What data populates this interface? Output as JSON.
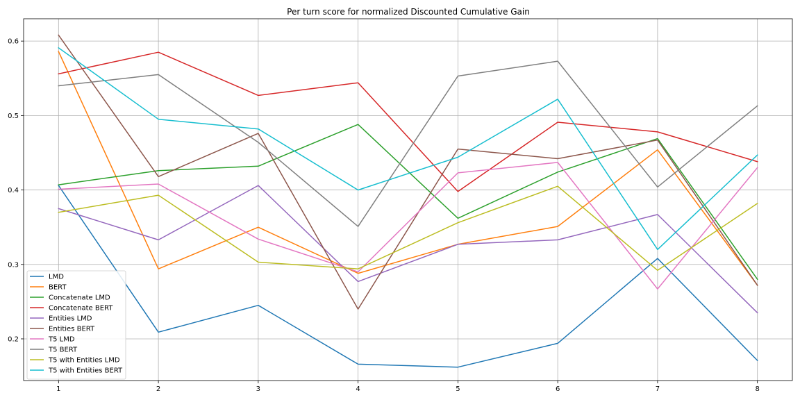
{
  "chart_data": {
    "type": "line",
    "title": "Per turn score for normalized Discounted Cumulative Gain",
    "xlabel": "",
    "ylabel": "",
    "x": [
      1,
      2,
      3,
      4,
      5,
      6,
      7,
      8
    ],
    "xlim": [
      0.65,
      8.35
    ],
    "ylim": [
      0.144,
      0.63
    ],
    "xticks": [
      1,
      2,
      3,
      4,
      5,
      6,
      7,
      8
    ],
    "yticks": [
      0.2,
      0.3,
      0.4,
      0.5,
      0.6
    ],
    "grid": true,
    "legend_position": "bottom-left",
    "series": [
      {
        "name": "LMD",
        "color": "#1f77b4",
        "values": [
          0.406,
          0.209,
          0.245,
          0.166,
          0.162,
          0.194,
          0.308,
          0.171
        ]
      },
      {
        "name": "BERT",
        "color": "#ff7f0e",
        "values": [
          0.586,
          0.294,
          0.35,
          0.288,
          0.327,
          0.351,
          0.454,
          0.272
        ]
      },
      {
        "name": "Concatenate LMD",
        "color": "#2ca02c",
        "values": [
          0.407,
          0.426,
          0.432,
          0.488,
          0.362,
          0.424,
          0.469,
          0.28
        ]
      },
      {
        "name": "Concatenate BERT",
        "color": "#d62728",
        "values": [
          0.556,
          0.585,
          0.527,
          0.544,
          0.398,
          0.491,
          0.478,
          0.438
        ]
      },
      {
        "name": "Entities LMD",
        "color": "#9467bd",
        "values": [
          0.375,
          0.333,
          0.406,
          0.277,
          0.327,
          0.333,
          0.367,
          0.235
        ]
      },
      {
        "name": "Entities BERT",
        "color": "#8c564b",
        "values": [
          0.608,
          0.418,
          0.476,
          0.24,
          0.455,
          0.442,
          0.467,
          0.272
        ]
      },
      {
        "name": "T5 LMD",
        "color": "#e377c2",
        "values": [
          0.401,
          0.408,
          0.334,
          0.29,
          0.423,
          0.437,
          0.267,
          0.43
        ]
      },
      {
        "name": "T5 BERT",
        "color": "#7f7f7f",
        "values": [
          0.54,
          0.555,
          0.464,
          0.351,
          0.553,
          0.573,
          0.404,
          0.513
        ]
      },
      {
        "name": "T5 with Entities LMD",
        "color": "#bcbd22",
        "values": [
          0.37,
          0.393,
          0.303,
          0.294,
          0.356,
          0.405,
          0.292,
          0.382
        ]
      },
      {
        "name": "T5 with Entities BERT",
        "color": "#17becf",
        "values": [
          0.591,
          0.495,
          0.482,
          0.4,
          0.444,
          0.522,
          0.32,
          0.447
        ]
      }
    ]
  }
}
